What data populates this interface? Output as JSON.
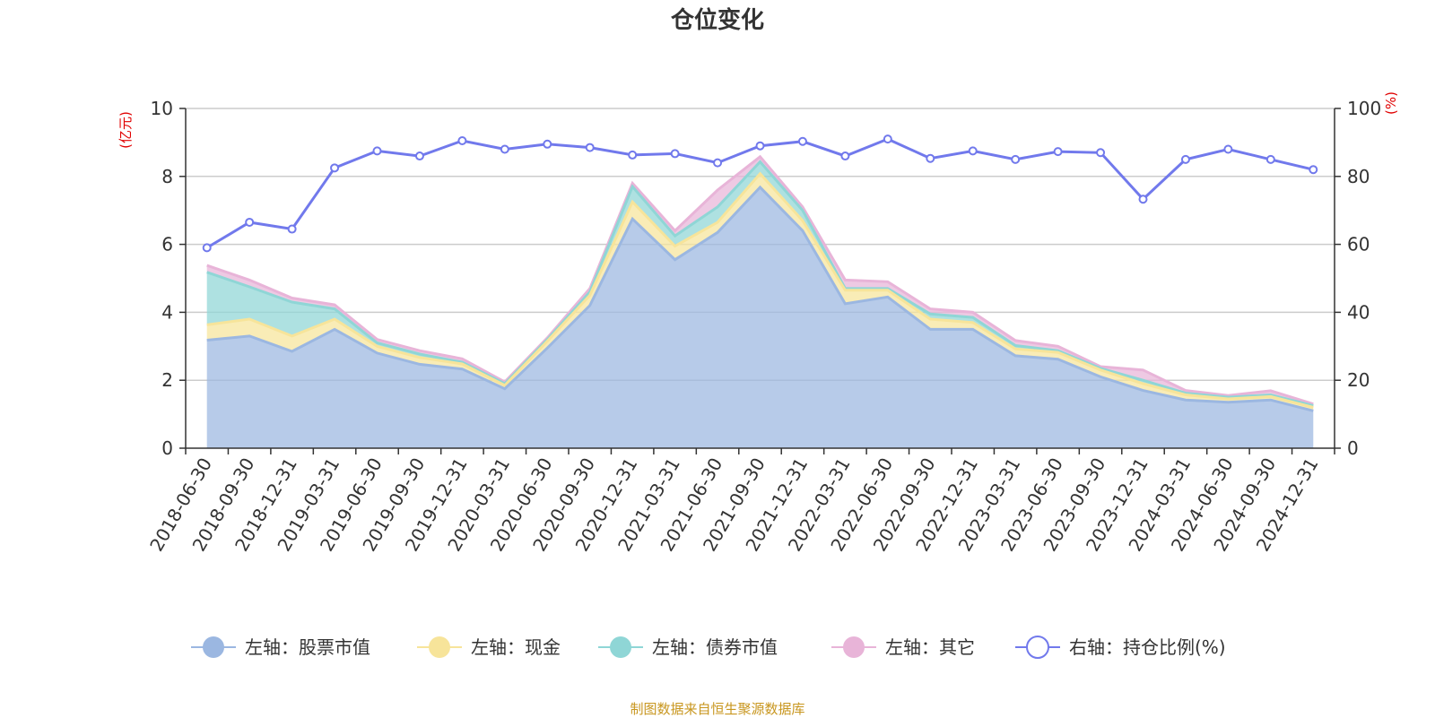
{
  "colors": {
    "stock": "#9bb7e1",
    "cash": "#f7e49a",
    "bond": "#8fd6d6",
    "other": "#e8b4d8",
    "ratio": "#7179ec",
    "unit": "#e00000",
    "source": "#c8961e",
    "grid": "#cccccc",
    "axis": "#333333"
  },
  "chart_data": {
    "type": "area",
    "title": "仓位变化",
    "source_note": "制图数据来自恒生聚源数据库",
    "left_unit": "(亿元)",
    "right_unit": "(%)",
    "ylim_left": [
      0,
      10
    ],
    "ylim_right": [
      0,
      100
    ],
    "yticks_left": [
      0,
      2,
      4,
      6,
      8,
      10
    ],
    "yticks_right": [
      0,
      20,
      40,
      60,
      80,
      100
    ],
    "grid": true,
    "legend_position": "bottom",
    "categories": [
      "2018-06-30",
      "2018-09-30",
      "2018-12-31",
      "2019-03-31",
      "2019-06-30",
      "2019-09-30",
      "2019-12-31",
      "2020-03-31",
      "2020-06-30",
      "2020-09-30",
      "2020-12-31",
      "2021-03-31",
      "2021-06-30",
      "2021-09-30",
      "2021-12-31",
      "2022-03-31",
      "2022-06-30",
      "2022-09-30",
      "2022-12-31",
      "2023-03-31",
      "2023-06-30",
      "2023-09-30",
      "2023-12-31",
      "2024-03-31",
      "2024-06-30",
      "2024-09-30",
      "2024-12-31"
    ],
    "series": [
      {
        "key": "stock",
        "name": "左轴：股票市值",
        "axis": "left",
        "values": [
          3.18,
          3.3,
          2.85,
          3.5,
          2.8,
          2.47,
          2.33,
          1.75,
          2.95,
          4.2,
          6.75,
          5.55,
          6.35,
          7.68,
          6.4,
          4.25,
          4.45,
          3.5,
          3.5,
          2.72,
          2.62,
          2.1,
          1.7,
          1.42,
          1.35,
          1.42,
          1.1
        ]
      },
      {
        "key": "cash",
        "name": "左轴：现金",
        "axis": "left",
        "values": [
          0.45,
          0.5,
          0.45,
          0.3,
          0.2,
          0.2,
          0.15,
          0.1,
          0.2,
          0.3,
          0.5,
          0.4,
          0.3,
          0.4,
          0.3,
          0.4,
          0.2,
          0.3,
          0.2,
          0.2,
          0.2,
          0.2,
          0.2,
          0.15,
          0.1,
          0.1,
          0.1
        ]
      },
      {
        "key": "bond",
        "name": "左轴：债券市值",
        "axis": "left",
        "values": [
          1.55,
          0.95,
          1.0,
          0.3,
          0.1,
          0.1,
          0.05,
          0.05,
          0.05,
          0.1,
          0.45,
          0.3,
          0.45,
          0.35,
          0.3,
          0.05,
          0.05,
          0.15,
          0.15,
          0.1,
          0.05,
          0.05,
          0.1,
          0.05,
          0.05,
          0.05,
          0.05
        ]
      },
      {
        "key": "other",
        "name": "左轴：其它",
        "axis": "left",
        "values": [
          0.2,
          0.2,
          0.12,
          0.12,
          0.1,
          0.1,
          0.1,
          0.05,
          0.05,
          0.1,
          0.1,
          0.15,
          0.5,
          0.15,
          0.1,
          0.25,
          0.2,
          0.15,
          0.15,
          0.15,
          0.13,
          0.05,
          0.3,
          0.08,
          0.05,
          0.12,
          0.05
        ]
      },
      {
        "key": "ratio",
        "name": "右轴：持仓比例(%)",
        "axis": "right",
        "values": [
          59,
          66.5,
          64.5,
          82.5,
          87.5,
          86,
          90.5,
          88,
          89.5,
          88.5,
          86.3,
          86.7,
          84,
          89,
          90.3,
          86,
          91,
          85.3,
          87.5,
          85,
          87.3,
          87,
          73.3,
          85,
          88,
          85,
          82
        ]
      }
    ]
  }
}
